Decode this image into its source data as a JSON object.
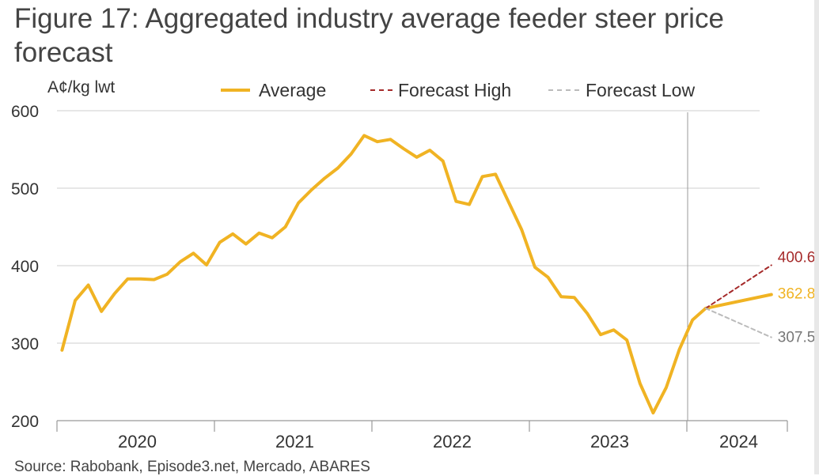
{
  "title": "Figure 17: Aggregated industry average feeder steer price forecast",
  "source": "Source: Rabobank, Episode3.net, Mercado, ABARES",
  "chart_data": {
    "type": "line",
    "ylabel": "A¢/kg lwt",
    "ylim": [
      200,
      600
    ],
    "yticks": [
      "600",
      "500",
      "400",
      "300",
      "200"
    ],
    "xlabels": [
      "2020",
      "2021",
      "2022",
      "2023",
      "2024"
    ],
    "grid": true,
    "legend_position": "top",
    "legend": [
      {
        "name": "Average",
        "style": "solid",
        "color": "#F0B323"
      },
      {
        "name": "Forecast High",
        "style": "dashed",
        "color": "#A52A2A"
      },
      {
        "name": "Forecast Low",
        "style": "dashed",
        "color": "#BBBBBB"
      }
    ],
    "series": [
      {
        "name": "Average",
        "color": "#F0B323",
        "x": [
          "2019-12",
          "2020-01",
          "2020-02",
          "2020-03",
          "2020-04",
          "2020-05",
          "2020-06",
          "2020-07",
          "2020-08",
          "2020-09",
          "2020-10",
          "2020-11",
          "2020-12",
          "2021-01",
          "2021-02",
          "2021-03",
          "2021-04",
          "2021-05",
          "2021-06",
          "2021-07",
          "2021-08",
          "2021-09",
          "2021-10",
          "2021-11",
          "2021-12",
          "2022-01",
          "2022-02",
          "2022-03",
          "2022-04",
          "2022-05",
          "2022-06",
          "2022-07",
          "2022-08",
          "2022-09",
          "2022-10",
          "2022-11",
          "2022-12",
          "2023-01",
          "2023-02",
          "2023-03",
          "2023-04",
          "2023-05",
          "2023-06",
          "2023-07",
          "2023-08",
          "2023-09",
          "2023-10",
          "2023-11",
          "2023-12",
          "2024-01",
          "2024-06"
        ],
        "values": [
          291,
          355,
          375,
          341,
          364,
          383,
          383,
          382,
          389,
          405,
          416,
          401,
          430,
          441,
          428,
          442,
          436,
          450,
          481,
          498,
          513,
          526,
          544,
          568,
          560,
          563,
          551,
          540,
          549,
          535,
          483,
          479,
          515,
          518,
          482,
          446,
          398,
          385,
          360,
          359,
          338,
          311,
          317,
          304,
          248,
          210,
          243,
          292,
          330,
          345,
          362.8
        ]
      },
      {
        "name": "Forecast High",
        "color": "#A52A2A",
        "x": [
          "2024-01",
          "2024-06"
        ],
        "values": [
          345,
          400.6
        ],
        "end_label": "400.6"
      },
      {
        "name": "Forecast Low",
        "color": "#BBBBBB",
        "x": [
          "2024-01",
          "2024-06"
        ],
        "values": [
          345,
          307.5
        ],
        "end_label": "307.5"
      }
    ],
    "average_end_label": "362.8"
  }
}
